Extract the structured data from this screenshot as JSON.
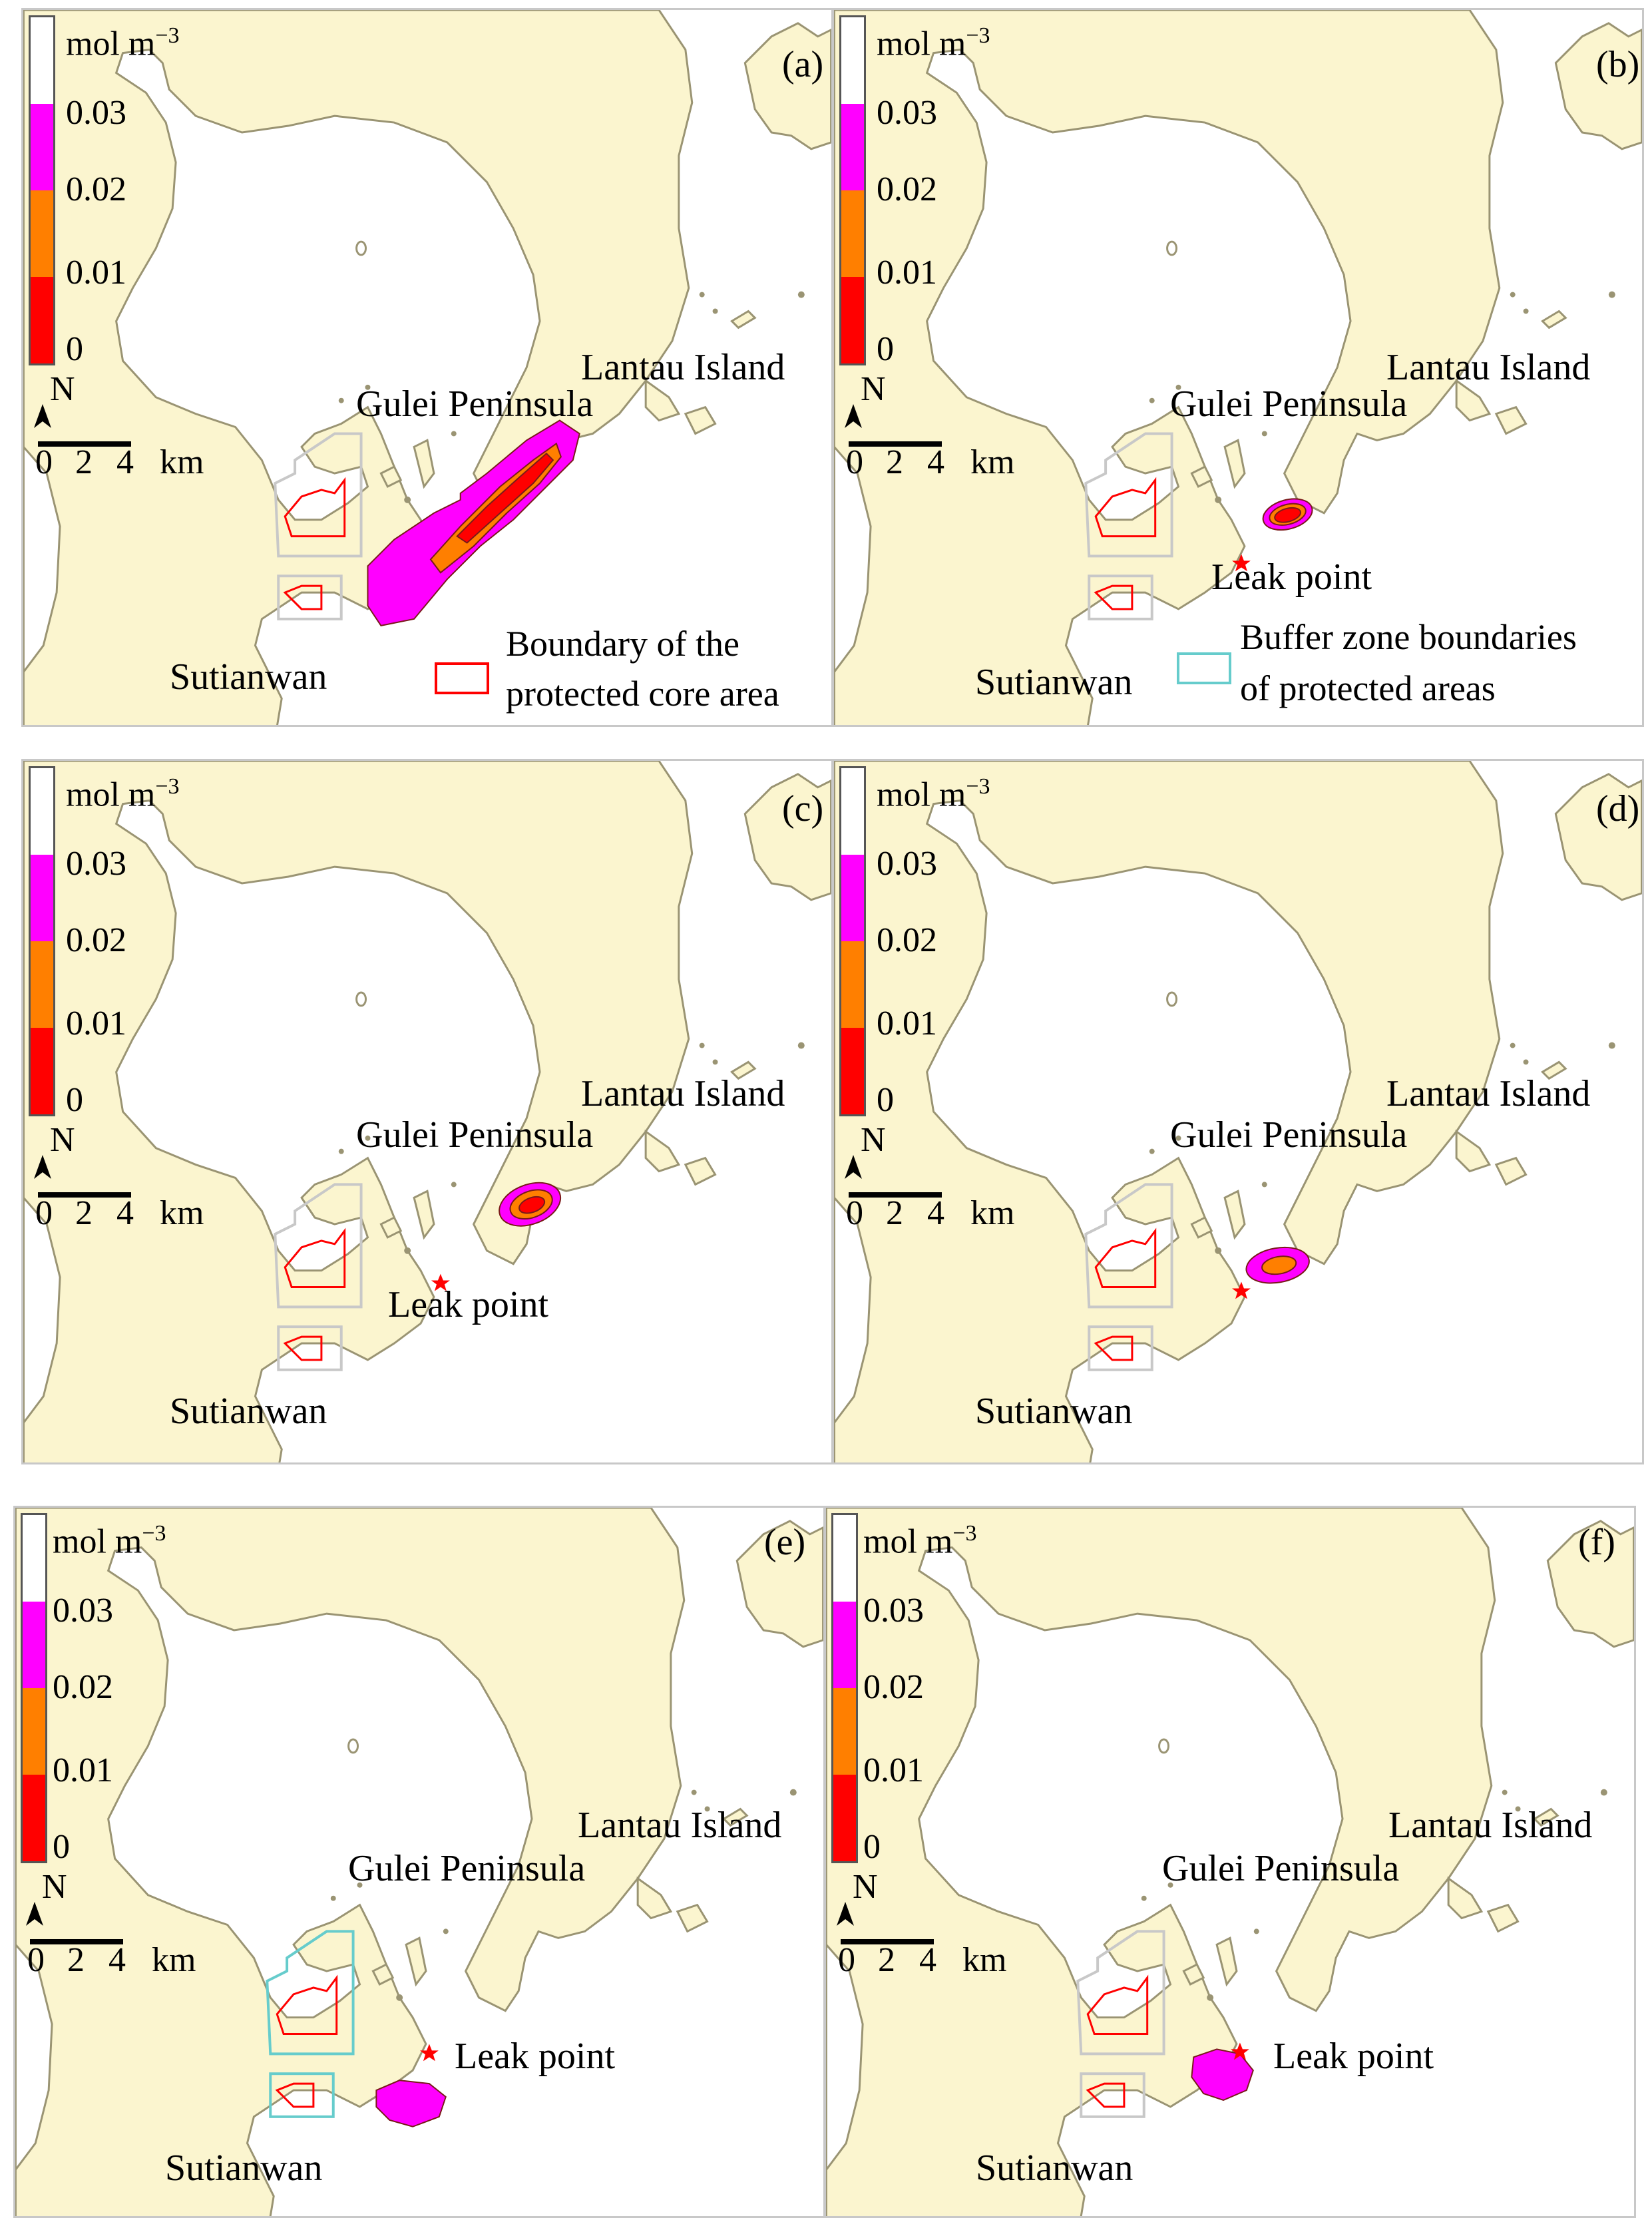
{
  "colors": {
    "land": "#fbf5cf",
    "coast": "#9a9473",
    "water": "#ffffff",
    "bin_0_001": "#ff0000",
    "bin_001_002": "#ff7f00",
    "bin_002_003": "#ff00ff",
    "bin_above_003": "#ffffff",
    "core_boundary": "#ff0000",
    "buffer_boundary": "#66cccc",
    "leak_marker": "#ff0000"
  },
  "colorbar": {
    "unit_base": "mol m",
    "unit_exp": "−3",
    "ticks": [
      "0.03",
      "0.02",
      "0.01",
      "0"
    ]
  },
  "scale_bar": {
    "labels": [
      "0",
      "2",
      "4"
    ],
    "unit": "km"
  },
  "north_label": "N",
  "place_names": {
    "lantau": "Lantau Island",
    "gulei": "Gulei Peninsula",
    "sutianwan": "Sutianwan"
  },
  "leak_label": "Leak point",
  "legend": {
    "core": [
      "Boundary of the",
      "protected core area"
    ],
    "buffer": [
      "Buffer zone boundaries",
      "of protected areas"
    ]
  },
  "panels": [
    {
      "id": "a",
      "label": "(a)",
      "plume": {
        "type": "elongated",
        "direction": "northeast"
      },
      "leak_shown": false
    },
    {
      "id": "b",
      "label": "(b)",
      "plume": {
        "type": "small",
        "levels": [
          "0.02-0.03",
          "0.01-0.02",
          "0-0.01"
        ]
      },
      "leak_shown": true
    },
    {
      "id": "c",
      "label": "(c)",
      "plume": {
        "type": "small",
        "levels": [
          "0.02-0.03",
          "0.01-0.02",
          "0-0.01"
        ]
      },
      "leak_shown": true
    },
    {
      "id": "d",
      "label": "(d)",
      "plume": {
        "type": "small",
        "levels": [
          "0.02-0.03",
          "0.01-0.02"
        ]
      },
      "leak_shown": true
    },
    {
      "id": "e",
      "label": "(e)",
      "plume": {
        "type": "blob",
        "levels": [
          "0.02-0.03"
        ]
      },
      "leak_shown": true
    },
    {
      "id": "f",
      "label": "(f)",
      "plume": {
        "type": "blob",
        "levels": [
          "0.02-0.03"
        ]
      },
      "leak_shown": true
    }
  ]
}
